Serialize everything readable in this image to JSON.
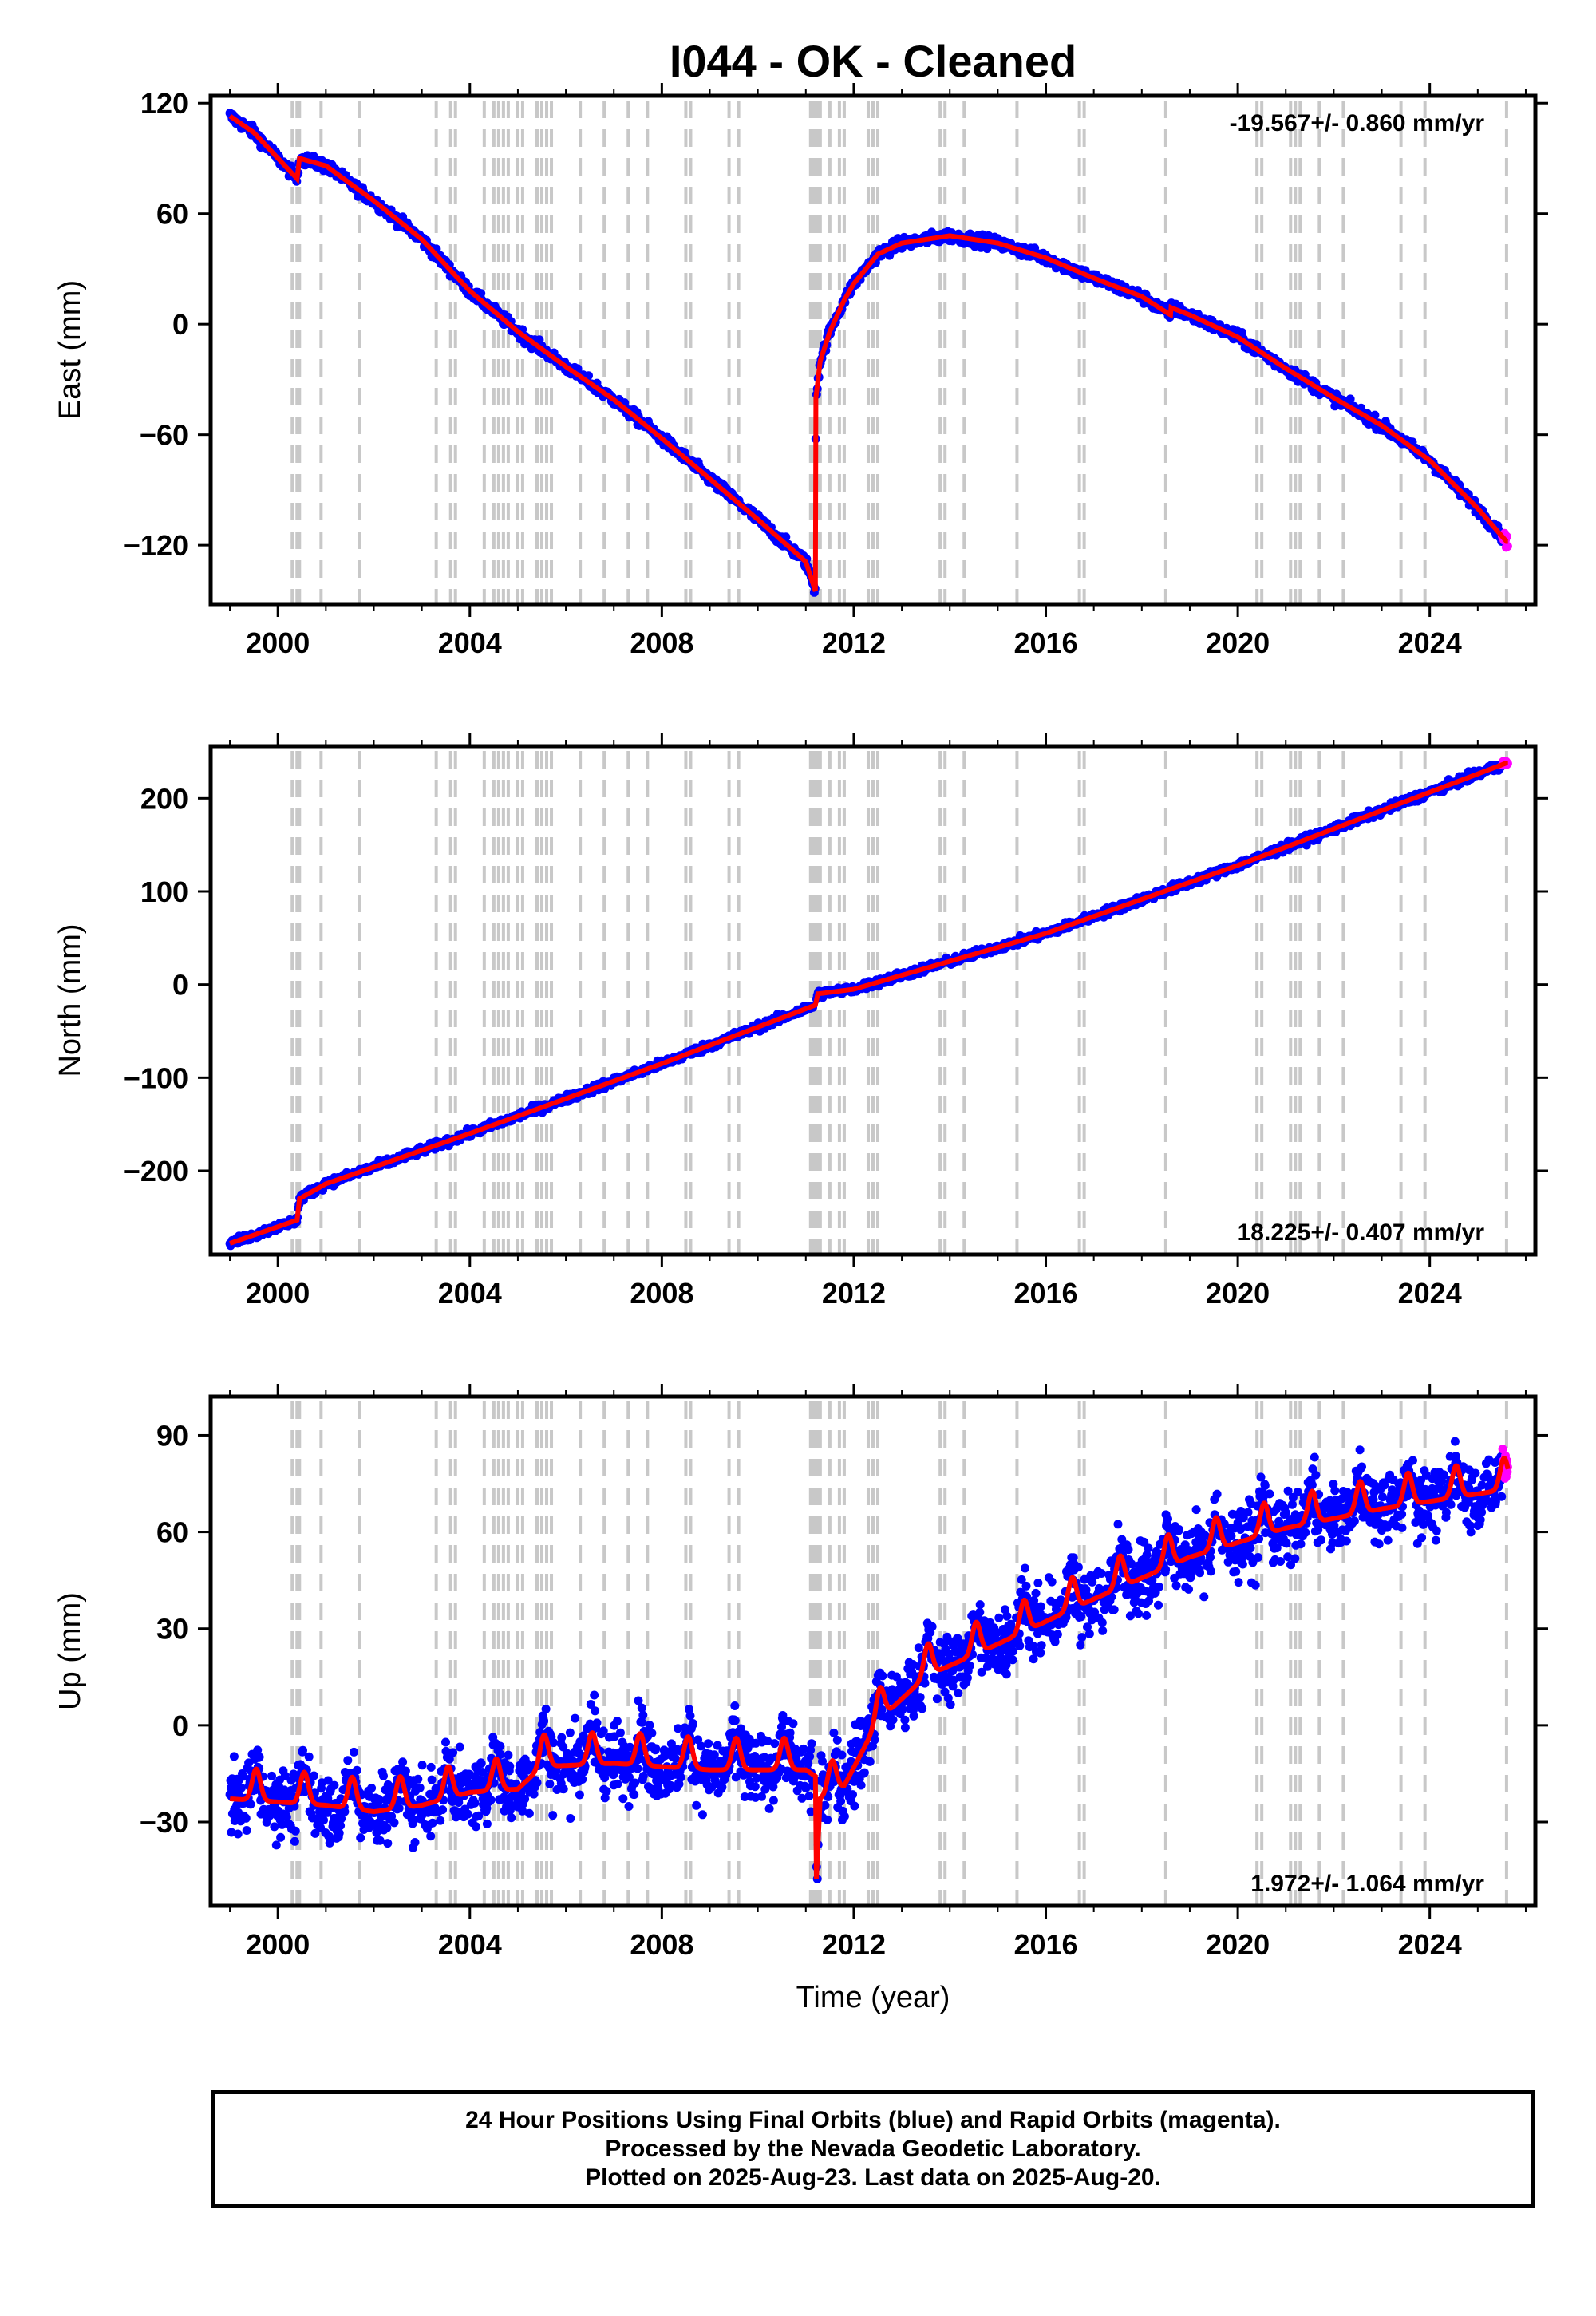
{
  "chart_data": {
    "type": "scatter",
    "title": "I044  - OK - Cleaned",
    "xlabel": "Time (year)",
    "xlim": [
      1998.6,
      2026.2
    ],
    "x_ticks": [
      2000,
      2004,
      2008,
      2012,
      2016,
      2020,
      2024
    ],
    "x_tick_labels": [
      "2000",
      "2004",
      "2008",
      "2012",
      "2016",
      "2020",
      "2024"
    ],
    "grid": false,
    "event_lines": [
      2000.3,
      2000.4,
      2000.45,
      2000.9,
      2001.7,
      2003.3,
      2003.6,
      2003.7,
      2004.3,
      2004.5,
      2004.6,
      2004.7,
      2004.8,
      2005.0,
      2005.1,
      2005.4,
      2005.5,
      2005.6,
      2005.7,
      2006.3,
      2006.8,
      2007.3,
      2007.7,
      2008.5,
      2008.6,
      2009.4,
      2009.6,
      2011.1,
      2011.15,
      2011.2,
      2011.25,
      2011.3,
      2011.5,
      2011.7,
      2011.8,
      2012.3,
      2012.4,
      2012.5,
      2013.8,
      2013.9,
      2014.3,
      2015.4,
      2016.7,
      2016.8,
      2018.5,
      2020.4,
      2020.5,
      2021.1,
      2021.2,
      2021.3,
      2021.7,
      2022.2,
      2023.4,
      2023.9,
      2025.6
    ],
    "panels": [
      {
        "component": "East",
        "ylabel": "East (mm)",
        "ylim": [
          -152,
          124
        ],
        "y_ticks": [
          -120,
          -60,
          0,
          60,
          120
        ],
        "y_tick_labels": [
          "−120",
          "−60",
          "0",
          "60",
          "120"
        ],
        "rate_label": "-19.567+/- 0.860 mm/yr",
        "rate_position": "top-right",
        "noise": 2.2,
        "model": [
          [
            1999.0,
            113
          ],
          [
            1999.5,
            104
          ],
          [
            2000.4,
            79
          ],
          [
            2000.45,
            90
          ],
          [
            2001.0,
            86
          ],
          [
            2002.0,
            67
          ],
          [
            2003.0,
            46
          ],
          [
            2004.0,
            18
          ],
          [
            2005.0,
            -4
          ],
          [
            2006.0,
            -23
          ],
          [
            2007.0,
            -41
          ],
          [
            2008.0,
            -62
          ],
          [
            2009.0,
            -84
          ],
          [
            2010.0,
            -106
          ],
          [
            2011.0,
            -129
          ],
          [
            2011.2,
            -145
          ],
          [
            2011.21,
            -40
          ],
          [
            2011.3,
            -20
          ],
          [
            2011.5,
            -4
          ],
          [
            2011.8,
            13
          ],
          [
            2012.0,
            22
          ],
          [
            2012.5,
            38
          ],
          [
            2013.0,
            44
          ],
          [
            2014.0,
            48
          ],
          [
            2015.0,
            44
          ],
          [
            2016.0,
            36
          ],
          [
            2017.0,
            25
          ],
          [
            2018.0,
            15
          ],
          [
            2018.6,
            5
          ],
          [
            2018.61,
            9
          ],
          [
            2019.0,
            5
          ],
          [
            2020.0,
            -7
          ],
          [
            2021.0,
            -24
          ],
          [
            2022.0,
            -40
          ],
          [
            2023.0,
            -55
          ],
          [
            2024.0,
            -74
          ],
          [
            2025.0,
            -100
          ],
          [
            2025.6,
            -118
          ]
        ]
      },
      {
        "component": "North",
        "ylabel": "North (mm)",
        "ylim": [
          -290,
          256
        ],
        "y_ticks": [
          -200,
          -100,
          0,
          100,
          200
        ],
        "y_tick_labels": [
          "−200",
          "−100",
          "0",
          "100",
          "200"
        ],
        "rate_label": "18.225+/- 0.407 mm/yr",
        "rate_position": "bottom-right",
        "noise": 3.0,
        "model": [
          [
            1999.0,
            -278
          ],
          [
            2000.4,
            -253
          ],
          [
            2000.45,
            -230
          ],
          [
            2001.0,
            -214
          ],
          [
            2004.0,
            -160
          ],
          [
            2008.0,
            -85
          ],
          [
            2011.2,
            -22
          ],
          [
            2011.25,
            -10
          ],
          [
            2012.0,
            -5
          ],
          [
            2016.0,
            55
          ],
          [
            2020.0,
            128
          ],
          [
            2025.6,
            238
          ]
        ]
      },
      {
        "component": "Up",
        "ylabel": "Up (mm)",
        "ylim": [
          -56,
          102
        ],
        "y_ticks": [
          -30,
          0,
          30,
          60,
          90
        ],
        "y_tick_labels": [
          "−30",
          "0",
          "30",
          "60",
          "90"
        ],
        "rate_label": "1.972+/- 1.064 mm/yr",
        "rate_position": "bottom-right",
        "noise": 6.5,
        "seasonal_amplitude": 7,
        "model": [
          [
            1999.0,
            -20
          ],
          [
            2001.0,
            -22
          ],
          [
            2002.0,
            -24
          ],
          [
            2003.0,
            -22
          ],
          [
            2004.0,
            -18
          ],
          [
            2005.0,
            -17
          ],
          [
            2005.5,
            -10
          ],
          [
            2007.0,
            -9
          ],
          [
            2009.0,
            -11
          ],
          [
            2011.0,
            -11
          ],
          [
            2011.2,
            -13
          ],
          [
            2011.22,
            -45
          ],
          [
            2011.3,
            -20
          ],
          [
            2011.8,
            -16
          ],
          [
            2012.5,
            4
          ],
          [
            2013.5,
            18
          ],
          [
            2015.0,
            28
          ],
          [
            2017.0,
            42
          ],
          [
            2019.0,
            55
          ],
          [
            2021.0,
            64
          ],
          [
            2023.0,
            70
          ],
          [
            2025.6,
            76
          ]
        ]
      }
    ],
    "series": [
      {
        "name": "Final Orbits",
        "color": "#0000ff"
      },
      {
        "name": "Rapid Orbits",
        "color": "#ff00ff"
      }
    ],
    "fit_color": "#ff0000",
    "event_line_color": "#c8c8c8",
    "last_data_year": 2025.63
  },
  "footer": {
    "line1": "24 Hour Positions Using Final Orbits (blue) and Rapid Orbits (magenta).",
    "line2": "Processed by the Nevada Geodetic Laboratory.",
    "line3": "Plotted on 2025-Aug-23. Last data on 2025-Aug-20."
  }
}
